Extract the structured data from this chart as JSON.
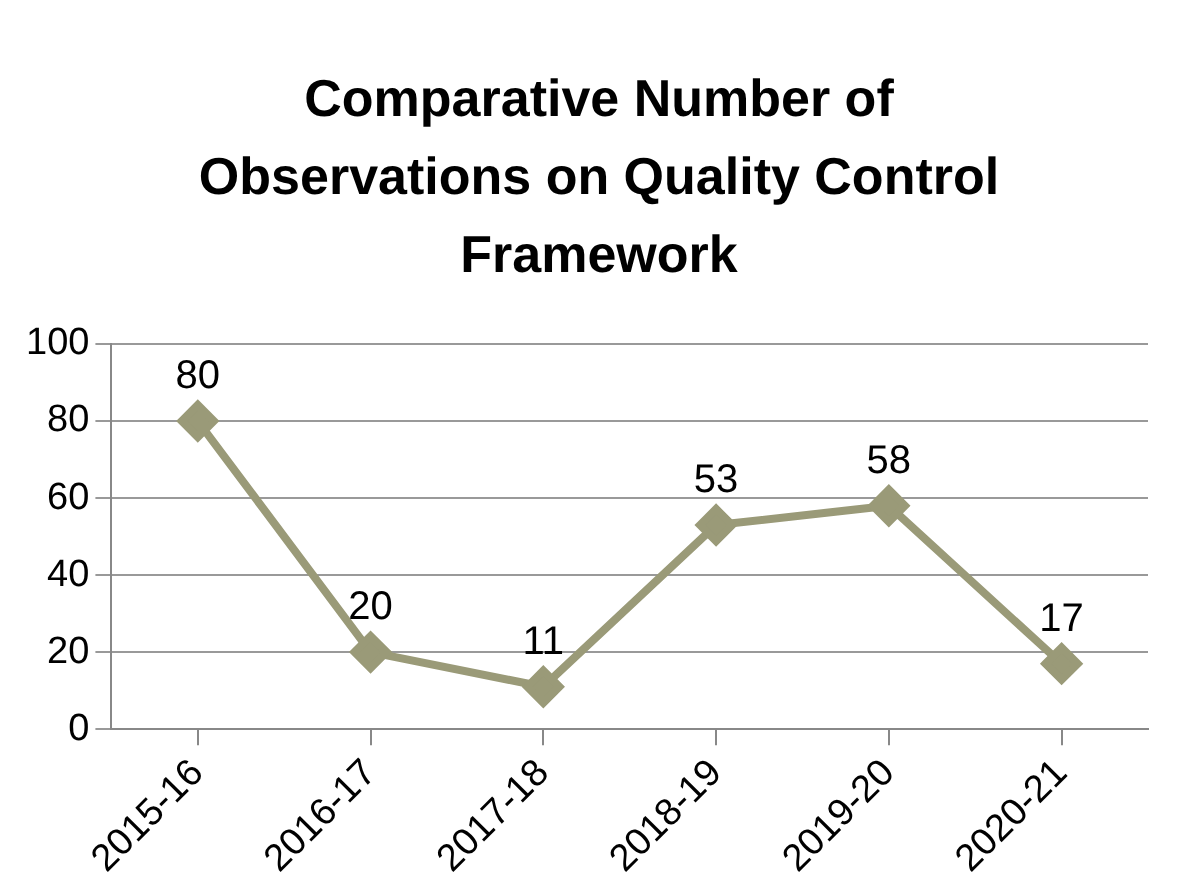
{
  "chart_data": {
    "type": "line",
    "title": "Comparative Number of Observations on Quality Control Framework",
    "categories": [
      "2015-16",
      "2016-17",
      "2017-18",
      "2018-19",
      "2019-20",
      "2020-21"
    ],
    "series": [
      {
        "color": "#9a9a78",
        "values": [
          80,
          20,
          11,
          53,
          58,
          17
        ]
      }
    ],
    "ylim": [
      0,
      100
    ],
    "yticks": [
      0,
      20,
      40,
      60,
      80,
      100
    ],
    "grid": "y",
    "legend": false,
    "marker": "diamond",
    "line_style": "solid",
    "data_labels": true
  }
}
